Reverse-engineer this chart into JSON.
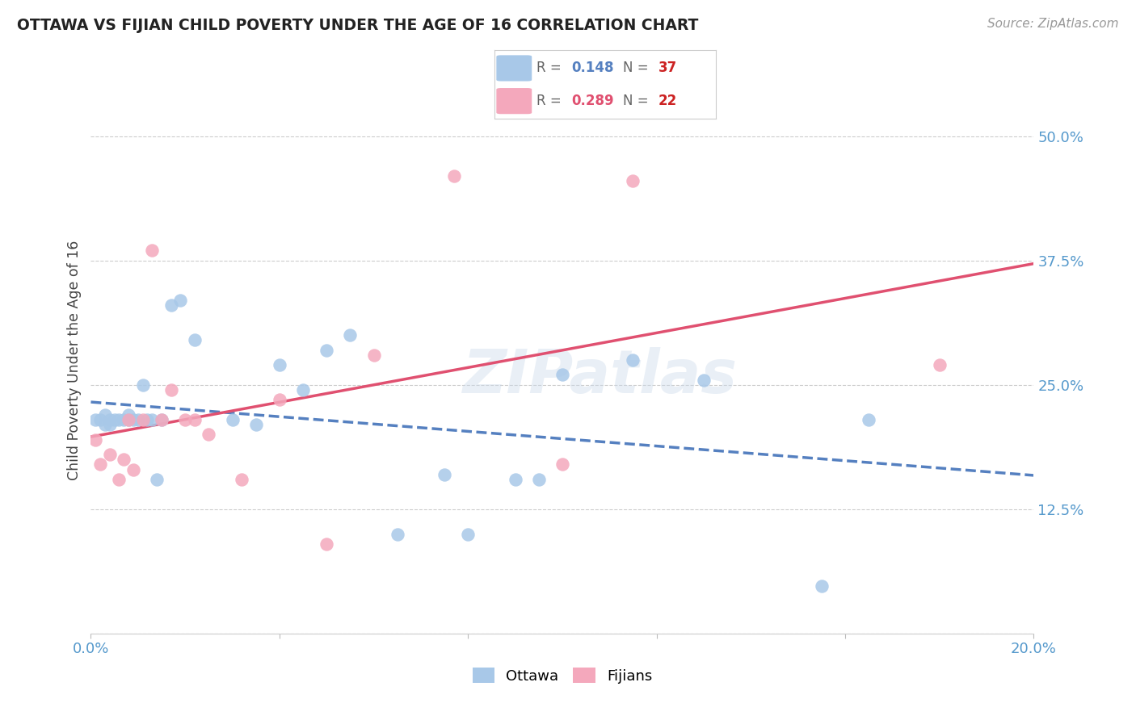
{
  "title": "OTTAWA VS FIJIAN CHILD POVERTY UNDER THE AGE OF 16 CORRELATION CHART",
  "source": "Source: ZipAtlas.com",
  "ylabel": "Child Poverty Under the Age of 16",
  "xlim": [
    0.0,
    0.2
  ],
  "ylim": [
    0.0,
    0.55
  ],
  "yticks_right": [
    0.0,
    0.125,
    0.25,
    0.375,
    0.5
  ],
  "ytick_labels_right": [
    "",
    "12.5%",
    "25.0%",
    "37.5%",
    "50.0%"
  ],
  "ottawa_color": "#a8c8e8",
  "fijian_color": "#f4a8bc",
  "ottawa_line_color": "#5580c0",
  "fijian_line_color": "#e05070",
  "r_ottawa": 0.148,
  "n_ottawa": 37,
  "r_fijian": 0.289,
  "n_fijian": 22,
  "watermark": "ZIPatlas",
  "ottawa_x": [
    0.001,
    0.002,
    0.003,
    0.003,
    0.004,
    0.004,
    0.005,
    0.006,
    0.007,
    0.008,
    0.008,
    0.009,
    0.01,
    0.011,
    0.012,
    0.013,
    0.014,
    0.015,
    0.017,
    0.019,
    0.022,
    0.03,
    0.035,
    0.04,
    0.045,
    0.05,
    0.055,
    0.065,
    0.075,
    0.08,
    0.09,
    0.095,
    0.1,
    0.115,
    0.13,
    0.155,
    0.165
  ],
  "ottawa_y": [
    0.215,
    0.215,
    0.22,
    0.21,
    0.215,
    0.21,
    0.215,
    0.215,
    0.215,
    0.215,
    0.22,
    0.215,
    0.215,
    0.25,
    0.215,
    0.215,
    0.155,
    0.215,
    0.33,
    0.335,
    0.295,
    0.215,
    0.21,
    0.27,
    0.245,
    0.285,
    0.3,
    0.1,
    0.16,
    0.1,
    0.155,
    0.155,
    0.26,
    0.275,
    0.255,
    0.048,
    0.215
  ],
  "fijian_x": [
    0.001,
    0.002,
    0.004,
    0.006,
    0.007,
    0.008,
    0.009,
    0.011,
    0.013,
    0.015,
    0.017,
    0.02,
    0.022,
    0.025,
    0.032,
    0.04,
    0.05,
    0.06,
    0.077,
    0.1,
    0.115,
    0.18
  ],
  "fijian_y": [
    0.195,
    0.17,
    0.18,
    0.155,
    0.175,
    0.215,
    0.165,
    0.215,
    0.385,
    0.215,
    0.245,
    0.215,
    0.215,
    0.2,
    0.155,
    0.235,
    0.09,
    0.28,
    0.46,
    0.17,
    0.455,
    0.27
  ]
}
